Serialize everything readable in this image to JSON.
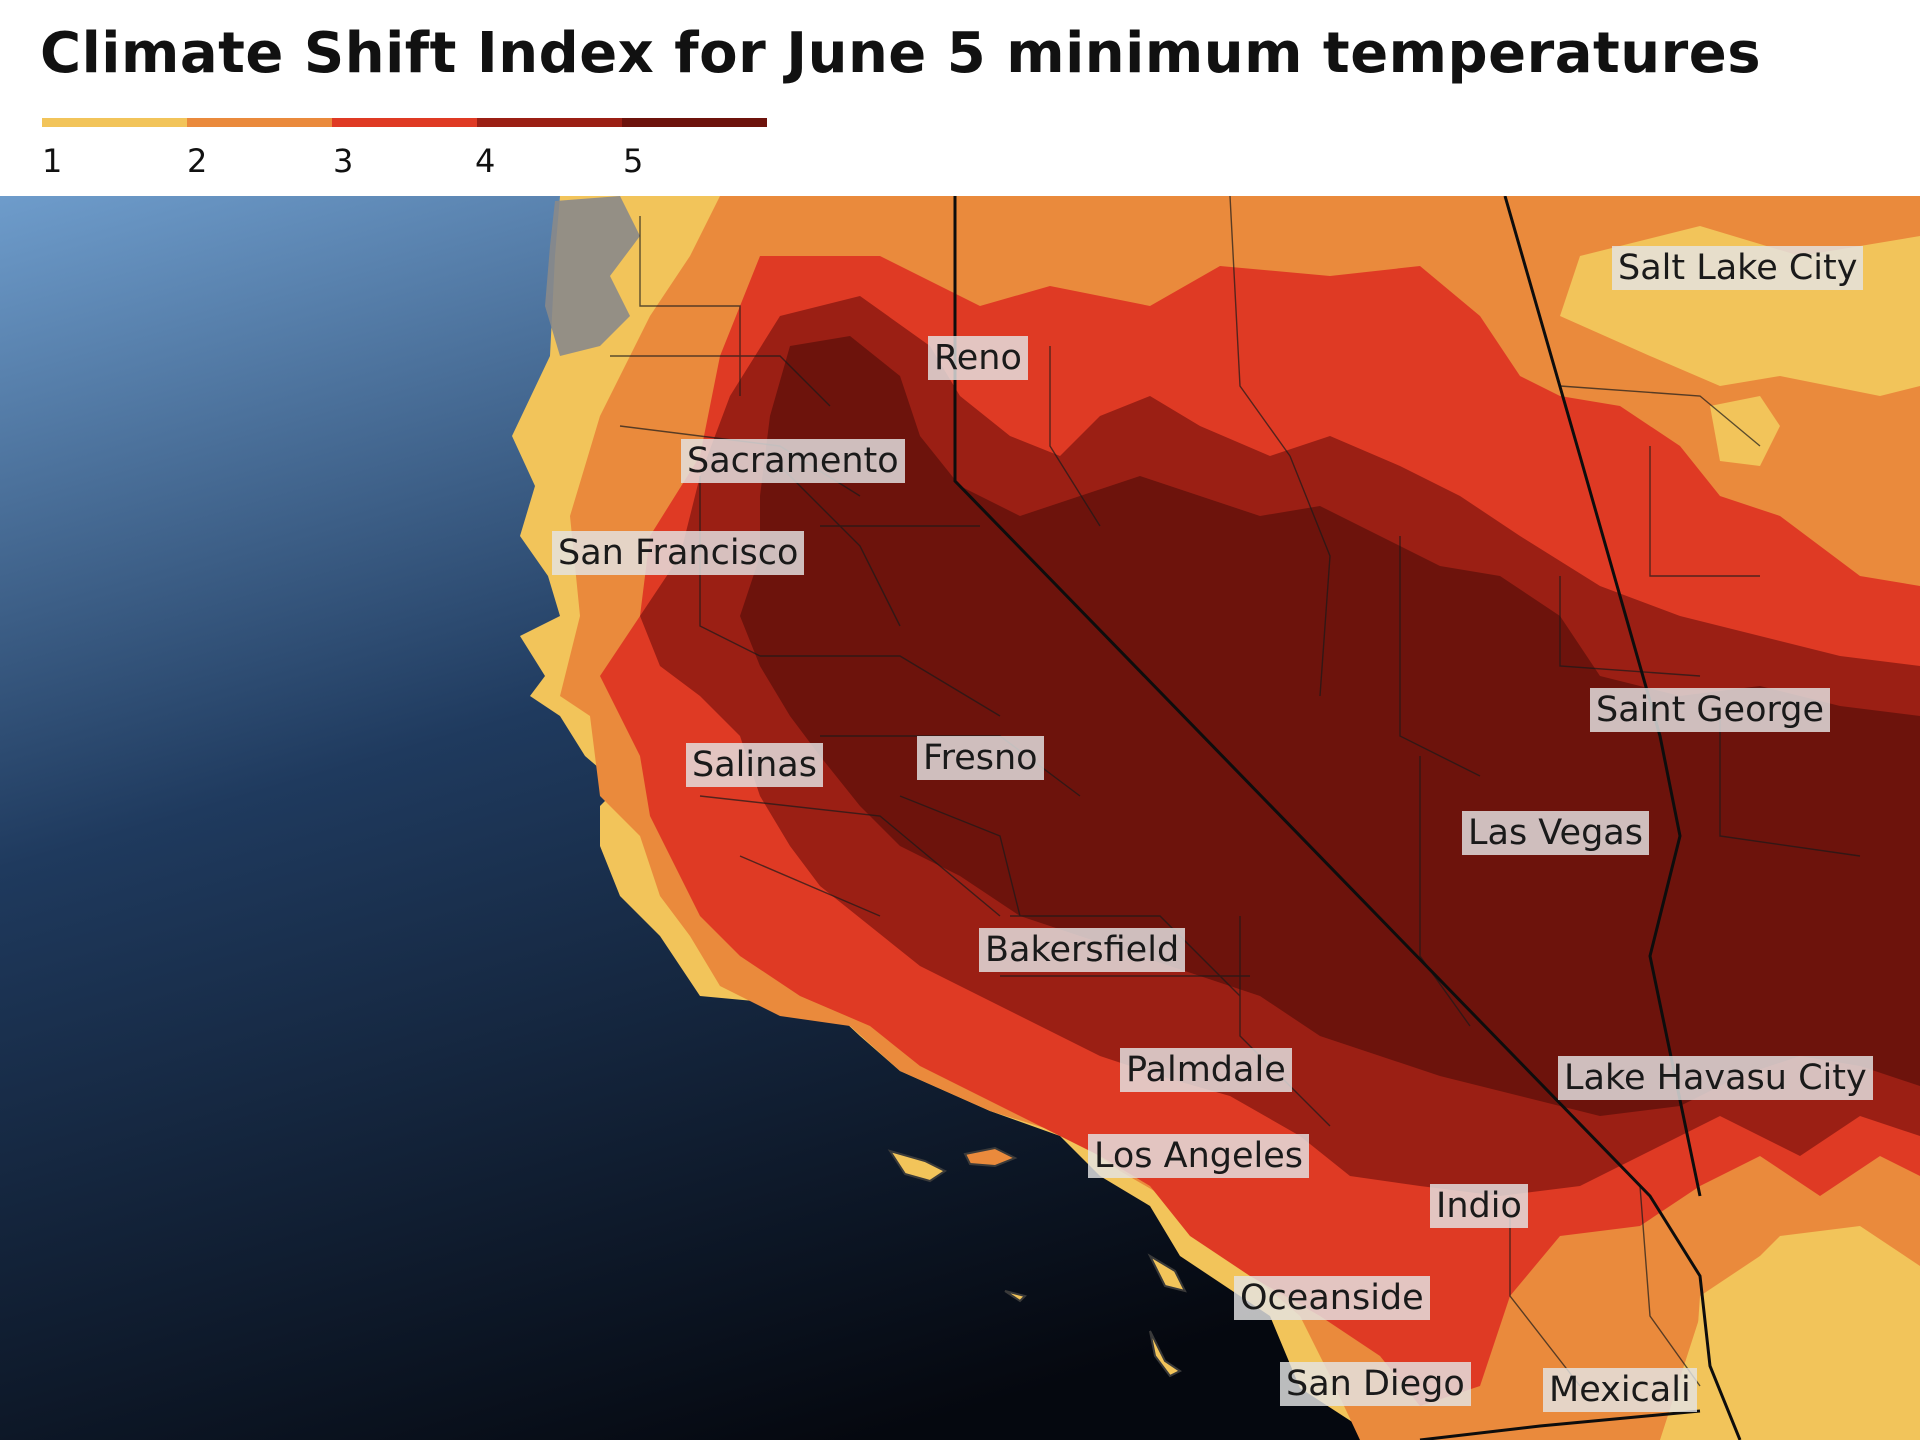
{
  "title": "Climate Shift Index for June 5 minimum temperatures",
  "legend": {
    "ticks": [
      "1",
      "2",
      "3",
      "4",
      "5"
    ],
    "colors": [
      "#f2c45a",
      "#ea8a3c",
      "#df3a24",
      "#9b1f14",
      "#6d130c"
    ]
  },
  "map": {
    "ocean_colors": [
      "#6e9ccb",
      "#1f3a5e",
      "#05080f"
    ],
    "land_shade_color": "#8a8a8a"
  },
  "cities": [
    {
      "name": "Salt Lake City"
    },
    {
      "name": "Reno"
    },
    {
      "name": "Sacramento"
    },
    {
      "name": "San Francisco"
    },
    {
      "name": "Saint George"
    },
    {
      "name": "Salinas"
    },
    {
      "name": "Fresno"
    },
    {
      "name": "Las Vegas"
    },
    {
      "name": "Bakersfield"
    },
    {
      "name": "Palmdale"
    },
    {
      "name": "Lake Havasu City"
    },
    {
      "name": "Los Angeles"
    },
    {
      "name": "Indio"
    },
    {
      "name": "Oceanside"
    },
    {
      "name": "San Diego"
    },
    {
      "name": "Mexicali"
    }
  ]
}
